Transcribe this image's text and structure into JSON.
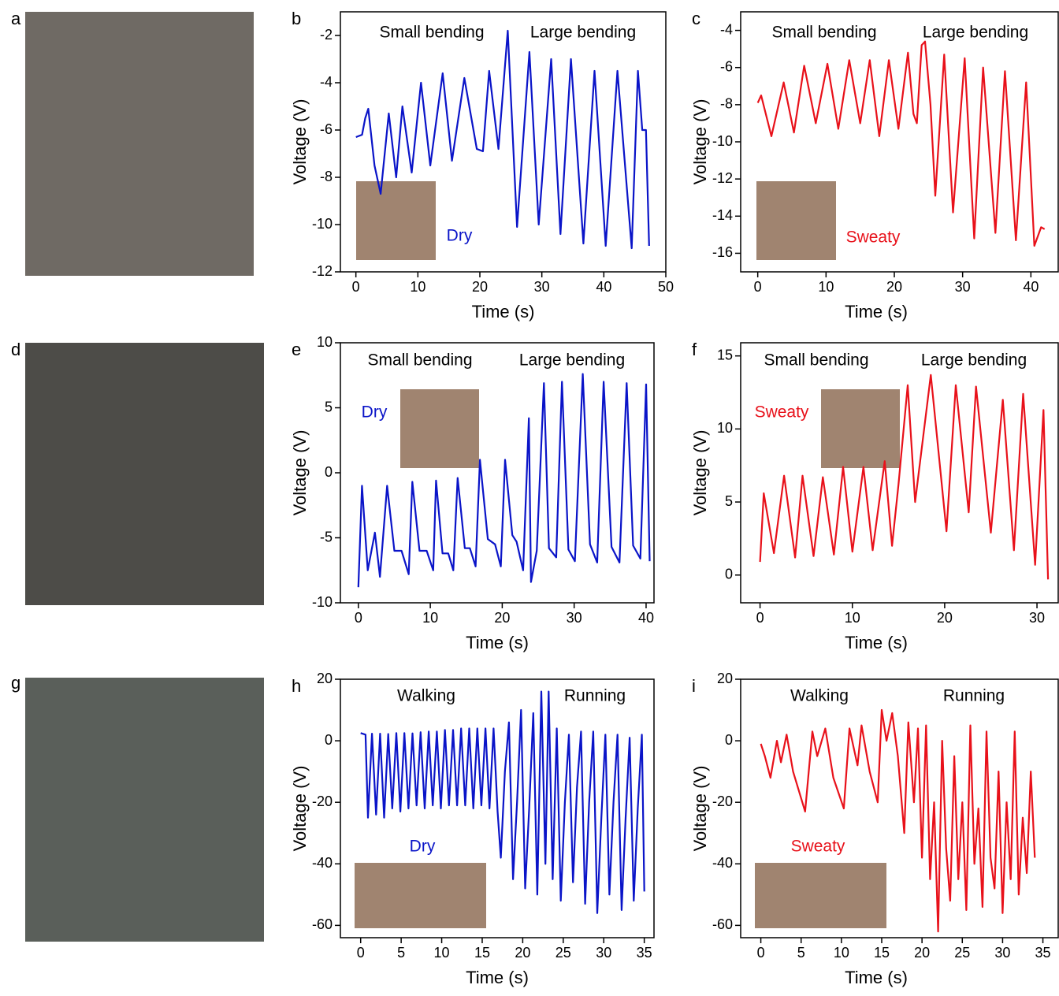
{
  "photos": [
    {
      "label": "a"
    },
    {
      "label": "d"
    },
    {
      "label": "g"
    }
  ],
  "chart_data": [
    {
      "type": "line",
      "panel_label": "b",
      "xlabel": "Time (s)",
      "ylabel": "Voltage (V)",
      "annotations": [
        "Small bending",
        "Large bending"
      ],
      "inset_label": "Dry",
      "xlim": [
        -2.5,
        50
      ],
      "ylim": [
        -12,
        -1
      ],
      "xticks": [
        0,
        10,
        20,
        30,
        40,
        50
      ],
      "yticks": [
        -12,
        -10,
        -8,
        -6,
        -4,
        -2
      ],
      "series": [
        {
          "color": "#0a14c8",
          "x": [
            0,
            1,
            1.5,
            2,
            3,
            4,
            5.3,
            6.5,
            7.5,
            9,
            10.5,
            12,
            14,
            15.5,
            17.5,
            19.5,
            20.5,
            21.5,
            23,
            24.5,
            26,
            28,
            29.5,
            31.5,
            33,
            34.7,
            36.7,
            38.5,
            40.3,
            42.2,
            44.5,
            45.5,
            46.2,
            46.8,
            47.3
          ],
          "values": [
            -6.3,
            -6.2,
            -5.5,
            -5.1,
            -7.5,
            -8.7,
            -5.3,
            -8,
            -5,
            -7.8,
            -4,
            -7.5,
            -3.6,
            -7.3,
            -3.8,
            -6.8,
            -6.9,
            -3.5,
            -6.8,
            -1.8,
            -10.1,
            -2.7,
            -10,
            -3,
            -10.4,
            -3,
            -10.8,
            -3.5,
            -10.9,
            -3.5,
            -11,
            -3.5,
            -6,
            -6,
            -10.9
          ]
        }
      ]
    },
    {
      "type": "line",
      "panel_label": "c",
      "xlabel": "Time (s)",
      "ylabel": "Voltage (V)",
      "annotations": [
        "Small bending",
        "Large bending"
      ],
      "inset_label": "Sweaty",
      "xlim": [
        -2.5,
        44
      ],
      "ylim": [
        -17,
        -3
      ],
      "xticks": [
        0,
        10,
        20,
        30,
        40
      ],
      "yticks": [
        -16,
        -14,
        -12,
        -10,
        -8,
        -6,
        -4
      ],
      "series": [
        {
          "color": "#e8111a",
          "x": [
            0,
            0.5,
            2,
            3.8,
            5.3,
            6.8,
            8.5,
            10.2,
            11.8,
            13.4,
            15,
            16.4,
            17.8,
            19.2,
            20.6,
            22,
            22.8,
            23.3,
            24,
            24.5,
            25.3,
            26,
            27.3,
            28.6,
            30.3,
            31.7,
            33,
            34.8,
            36.2,
            37.8,
            39.3,
            40.5,
            41.5,
            42
          ],
          "values": [
            -7.9,
            -7.5,
            -9.7,
            -6.8,
            -9.5,
            -5.9,
            -9,
            -5.8,
            -9.3,
            -5.6,
            -9,
            -5.6,
            -9.7,
            -5.6,
            -9.3,
            -5.2,
            -8.5,
            -9,
            -4.8,
            -4.6,
            -8,
            -12.9,
            -5.3,
            -13.8,
            -5.5,
            -15.2,
            -6,
            -14.9,
            -6.2,
            -15.3,
            -6.8,
            -15.6,
            -14.6,
            -14.7
          ]
        }
      ]
    },
    {
      "type": "line",
      "panel_label": "e",
      "xlabel": "Time (s)",
      "ylabel": "Voltage (V)",
      "annotations": [
        "Small bending",
        "Large bending"
      ],
      "inset_label": "Dry",
      "xlim": [
        -2.5,
        41.1
      ],
      "ylim": [
        -10,
        10
      ],
      "xticks": [
        0,
        10,
        20,
        30,
        40
      ],
      "yticks": [
        -10,
        -5,
        0,
        5,
        10
      ],
      "series": [
        {
          "color": "#0a14c8",
          "x": [
            0,
            0.5,
            1.3,
            2.3,
            3,
            4,
            5,
            6,
            7,
            7.5,
            8.5,
            9.5,
            10.4,
            10.8,
            11.7,
            12.5,
            13.2,
            13.8,
            14.8,
            15.5,
            16.3,
            16.9,
            18,
            19,
            19.8,
            20.4,
            21.4,
            22,
            22.9,
            23.7,
            24,
            24.8,
            25.8,
            26.5,
            27.5,
            28.3,
            29.2,
            30.1,
            31.2,
            32.2,
            33.2,
            34.1,
            35.2,
            36.3,
            37.3,
            38.2,
            39.2,
            40,
            40.5
          ],
          "values": [
            -8.8,
            -1,
            -7.5,
            -4.6,
            -8,
            -1,
            -6,
            -6,
            -7.8,
            -0.7,
            -6,
            -6,
            -7.5,
            -0.6,
            -6.2,
            -6.2,
            -7.5,
            -0.4,
            -5.8,
            -5.8,
            -7.2,
            1,
            -5.1,
            -5.5,
            -7.2,
            1,
            -4.8,
            -5.3,
            -7.5,
            4.2,
            -8.4,
            -6,
            6.9,
            -5.8,
            -6.5,
            7,
            -5.9,
            -6.8,
            7.6,
            -5.5,
            -6.9,
            7,
            -5.7,
            -6.9,
            6.9,
            -5.6,
            -6.6,
            6.8,
            -6.8
          ]
        }
      ]
    },
    {
      "type": "line",
      "panel_label": "f",
      "xlabel": "Time (s)",
      "ylabel": "Voltage (V)",
      "annotations": [
        "Small bending",
        "Large bending"
      ],
      "inset_label": "Sweaty",
      "xlim": [
        -2.1,
        32.3
      ],
      "ylim": [
        -1.9,
        15.9
      ],
      "xticks": [
        0,
        10,
        20,
        30
      ],
      "yticks": [
        0,
        5,
        10,
        15
      ],
      "series": [
        {
          "color": "#e8111a",
          "x": [
            0,
            0.4,
            1.5,
            2.6,
            3.8,
            4.6,
            5.8,
            6.8,
            8,
            9,
            10,
            11.2,
            12.2,
            13.5,
            14.3,
            15,
            16,
            16.8,
            18.5,
            20.2,
            21.2,
            22.6,
            23.4,
            25,
            26.3,
            27.5,
            28.5,
            29.8,
            30.7,
            31.2
          ],
          "values": [
            0.9,
            5.6,
            1.5,
            6.8,
            1.2,
            6.8,
            1.3,
            6.7,
            1.4,
            7.4,
            1.6,
            7.4,
            1.7,
            7.8,
            2,
            6.2,
            13,
            5,
            13.7,
            3,
            13,
            4.3,
            12.9,
            2.9,
            12,
            1.7,
            12.4,
            0.7,
            11.3,
            -0.3
          ]
        }
      ]
    },
    {
      "type": "line",
      "panel_label": "h",
      "xlabel": "Time (s)",
      "ylabel": "Voltage (V)",
      "annotations": [
        "Walking",
        "Running"
      ],
      "inset_label": "Dry",
      "xlim": [
        -2.5,
        36.2
      ],
      "ylim": [
        -64,
        20
      ],
      "xticks": [
        0,
        5,
        10,
        15,
        20,
        25,
        30,
        35
      ],
      "yticks": [
        -60,
        -40,
        -20,
        0,
        20
      ],
      "series": [
        {
          "color": "#0a14c8",
          "x": [
            0,
            0.6,
            0.9,
            1.4,
            1.9,
            2.4,
            2.9,
            3.4,
            3.9,
            4.4,
            4.9,
            5.4,
            5.9,
            6.4,
            6.9,
            7.4,
            7.9,
            8.4,
            8.9,
            9.4,
            9.9,
            10.4,
            10.9,
            11.4,
            11.9,
            12.4,
            12.9,
            13.4,
            13.9,
            14.4,
            14.9,
            15.4,
            15.9,
            16.4,
            16.9,
            17.3,
            17.8,
            18.3,
            18.8,
            19.3,
            19.8,
            20.3,
            20.8,
            21.3,
            21.8,
            22.3,
            22.8,
            23.2,
            23.7,
            24.2,
            24.7,
            25.2,
            25.7,
            26.2,
            26.7,
            27.2,
            27.7,
            28.2,
            28.7,
            29.2,
            29.7,
            30.2,
            30.7,
            31.2,
            31.7,
            32.2,
            32.7,
            33.2,
            33.7,
            34.2,
            34.7,
            35
          ],
          "values": [
            2.5,
            2,
            -25,
            2.3,
            -24,
            2.3,
            -25,
            2.2,
            -22,
            2.5,
            -23,
            2.5,
            -22,
            2.4,
            -21,
            2.8,
            -22,
            3,
            -21,
            3,
            -22,
            3.5,
            -21,
            3.5,
            -21,
            4,
            -21,
            4,
            -22,
            4,
            -21,
            4,
            -22,
            4,
            -23,
            -38,
            -10,
            6,
            -45,
            -20,
            10,
            -48,
            -22,
            9,
            -50,
            16,
            -40,
            16,
            -45,
            4,
            -52,
            -20,
            2,
            -46,
            -15,
            3,
            -53,
            -20,
            3,
            -56,
            -25,
            2,
            -50,
            -20,
            2,
            -55,
            -25,
            1,
            -52,
            -22,
            2,
            -49
          ]
        }
      ]
    },
    {
      "type": "line",
      "panel_label": "i",
      "xlabel": "Time (s)",
      "ylabel": "Voltage (V)",
      "annotations": [
        "Walking",
        "Running"
      ],
      "inset_label": "Sweaty",
      "xlim": [
        -2.5,
        36.9
      ],
      "ylim": [
        -64,
        20
      ],
      "xticks": [
        0,
        5,
        10,
        15,
        20,
        25,
        30,
        35
      ],
      "yticks": [
        -60,
        -40,
        -20,
        0,
        20
      ],
      "series": [
        {
          "color": "#e8111a",
          "x": [
            0,
            0.5,
            1.2,
            2,
            2.5,
            3.2,
            4,
            5.5,
            6.4,
            7,
            8,
            9,
            10.3,
            11,
            12,
            12.5,
            13.5,
            14.5,
            15,
            15.6,
            16.3,
            17,
            17.8,
            18.3,
            19,
            19.5,
            20,
            20.5,
            21,
            21.5,
            22,
            22.5,
            23,
            23.5,
            24,
            24.5,
            25,
            25.5,
            26,
            26.5,
            27,
            27.5,
            28,
            28.5,
            29,
            29.5,
            30,
            30.5,
            31,
            31.5,
            32,
            32.5,
            33,
            33.5,
            34
          ],
          "values": [
            -1,
            -5,
            -12,
            0,
            -7,
            2,
            -10,
            -23,
            3,
            -5,
            4,
            -12,
            -22,
            4,
            -8,
            5,
            -10,
            -20,
            10,
            0,
            9,
            -5,
            -30,
            6,
            -20,
            4,
            -38,
            5,
            -45,
            -20,
            -62,
            0,
            -35,
            -52,
            -5,
            -45,
            -20,
            -55,
            5,
            -40,
            -22,
            -54,
            3,
            -38,
            -48,
            -10,
            -56,
            -20,
            -45,
            3,
            -50,
            -25,
            -43,
            -10,
            -38
          ]
        }
      ]
    }
  ]
}
